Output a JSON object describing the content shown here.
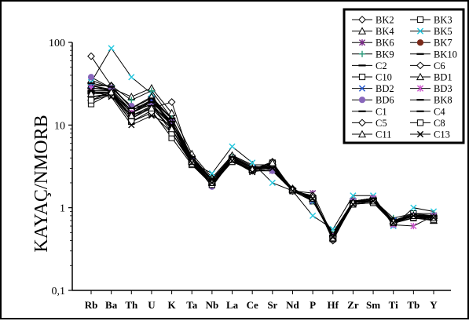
{
  "chart_data": {
    "type": "line",
    "ylabel": "KAYAÇ/NMORB",
    "yscale": "log",
    "ylim": [
      0.1,
      100
    ],
    "yticks": [
      {
        "value": 100,
        "label": "100"
      },
      {
        "value": 10,
        "label": "10"
      },
      {
        "value": 1,
        "label": "1"
      },
      {
        "value": 0.1,
        "label": "0,1"
      }
    ],
    "categories": [
      "Rb",
      "Ba",
      "Th",
      "U",
      "K",
      "Ta",
      "Nb",
      "La",
      "Ce",
      "Sr",
      "Nd",
      "P",
      "Hf",
      "Zr",
      "Sm",
      "Ti",
      "Tb",
      "Y"
    ],
    "legend_position": "top-right",
    "grid": false,
    "series": [
      {
        "name": "BK2",
        "marker": "diamond-open",
        "color": "#000000",
        "values": [
          68,
          30,
          16,
          22,
          12,
          4.2,
          2.2,
          4.2,
          3.2,
          3.0,
          1.7,
          1.3,
          0.45,
          1.2,
          1.3,
          0.65,
          0.8,
          0.75
        ]
      },
      {
        "name": "BK3",
        "marker": "square-open",
        "color": "#000000",
        "values": [
          30,
          27,
          15,
          20,
          11,
          4.0,
          2.1,
          4.0,
          3.0,
          3.1,
          1.6,
          1.2,
          0.5,
          1.2,
          1.25,
          0.7,
          0.85,
          0.8
        ]
      },
      {
        "name": "BK4",
        "marker": "triangle-open",
        "color": "#000000",
        "values": [
          35,
          28,
          22,
          28,
          14,
          4.5,
          2.3,
          4.3,
          3.3,
          3.3,
          1.7,
          1.3,
          0.45,
          1.15,
          1.2,
          0.7,
          0.8,
          0.7
        ]
      },
      {
        "name": "BK5",
        "marker": "x",
        "color": "#22c8e0",
        "values": [
          33,
          85,
          38,
          24,
          9,
          3.5,
          2.6,
          5.5,
          3.5,
          2.0,
          1.6,
          0.8,
          0.55,
          1.4,
          1.4,
          0.6,
          1.0,
          0.9
        ]
      },
      {
        "name": "BK6",
        "marker": "star",
        "color": "#7a2a8a",
        "values": [
          25,
          25,
          14,
          18,
          10,
          3.8,
          2.0,
          3.8,
          2.8,
          2.8,
          1.6,
          1.5,
          0.45,
          1.2,
          1.3,
          0.65,
          0.75,
          0.75
        ]
      },
      {
        "name": "BK7",
        "marker": "circle-filled",
        "color": "#7a2a1a",
        "values": [
          22,
          23,
          13,
          16,
          9,
          3.6,
          2.0,
          3.7,
          2.9,
          2.9,
          1.6,
          1.3,
          0.42,
          1.15,
          1.2,
          0.7,
          0.8,
          0.8
        ]
      },
      {
        "name": "BK9",
        "marker": "plus",
        "color": "#2a9a7a",
        "values": [
          30,
          30,
          20,
          26,
          12,
          4.0,
          2.2,
          4.1,
          3.1,
          3.1,
          1.7,
          1.2,
          0.48,
          1.2,
          1.25,
          0.75,
          0.85,
          0.85
        ]
      },
      {
        "name": "BK10",
        "marker": "dash",
        "color": "#000000",
        "values": [
          25,
          25,
          15,
          19,
          11,
          3.9,
          2.1,
          4.0,
          3.0,
          3.0,
          1.65,
          1.25,
          0.46,
          1.18,
          1.22,
          0.68,
          0.82,
          0.78
        ]
      },
      {
        "name": "C2",
        "marker": "dash",
        "color": "#000000",
        "values": [
          28,
          27,
          15,
          20,
          12,
          4.0,
          2.2,
          4.0,
          3.1,
          3.2,
          1.7,
          1.3,
          0.45,
          1.2,
          1.3,
          0.7,
          0.8,
          0.8
        ]
      },
      {
        "name": "C6",
        "marker": "diamond-open",
        "color": "#000000",
        "values": [
          20,
          25,
          12,
          17,
          9,
          3.4,
          1.9,
          3.7,
          2.8,
          3.2,
          1.6,
          1.4,
          0.4,
          1.15,
          1.2,
          0.7,
          0.8,
          0.75
        ]
      },
      {
        "name": "C10",
        "marker": "square-open",
        "color": "#000000",
        "values": [
          18,
          24,
          11,
          15,
          7,
          3.3,
          1.9,
          3.6,
          2.9,
          3.5,
          1.6,
          1.3,
          0.42,
          1.1,
          1.15,
          0.65,
          0.75,
          0.7
        ]
      },
      {
        "name": "BD1",
        "marker": "triangle-open",
        "color": "#000000",
        "values": [
          30,
          30,
          16,
          22,
          10,
          4.0,
          2.1,
          3.9,
          3.0,
          3.0,
          1.7,
          1.3,
          0.45,
          1.2,
          1.25,
          0.7,
          0.8,
          0.8
        ]
      },
      {
        "name": "BD2",
        "marker": "x",
        "color": "#2255cc",
        "values": [
          30,
          26,
          14,
          20,
          10,
          3.8,
          2.0,
          3.9,
          3.0,
          3.0,
          1.6,
          1.2,
          0.45,
          1.15,
          1.2,
          0.7,
          0.8,
          0.8
        ]
      },
      {
        "name": "BD3",
        "marker": "star",
        "color": "#cc55cc",
        "values": [
          28,
          26,
          14,
          18,
          8,
          3.6,
          1.9,
          3.8,
          2.9,
          2.9,
          1.6,
          1.3,
          0.45,
          1.2,
          1.3,
          0.62,
          0.6,
          0.8
        ]
      },
      {
        "name": "BD6",
        "marker": "circle-filled",
        "color": "#8866bb",
        "values": [
          38,
          28,
          17,
          17,
          11,
          3.7,
          1.8,
          3.8,
          2.8,
          2.8,
          1.6,
          1.3,
          0.44,
          1.2,
          1.25,
          0.66,
          0.8,
          0.78
        ]
      },
      {
        "name": "BK8",
        "marker": "dash",
        "color": "#000000",
        "values": [
          32,
          29,
          16,
          21,
          12,
          4.1,
          2.2,
          4.1,
          3.1,
          3.1,
          1.7,
          1.3,
          0.46,
          1.2,
          1.3,
          0.7,
          0.82,
          0.8
        ]
      },
      {
        "name": "C1",
        "marker": "dash",
        "color": "#000000",
        "values": [
          24,
          24,
          13,
          17,
          10,
          3.6,
          2.0,
          3.8,
          2.9,
          3.3,
          1.65,
          1.35,
          0.44,
          1.15,
          1.22,
          0.7,
          0.8,
          0.76
        ]
      },
      {
        "name": "C4",
        "marker": "dash",
        "color": "#000000",
        "values": [
          26,
          26,
          14,
          19,
          11,
          3.8,
          2.1,
          3.9,
          3.0,
          3.3,
          1.7,
          1.3,
          0.45,
          1.2,
          1.25,
          0.7,
          0.82,
          0.78
        ]
      },
      {
        "name": "C5",
        "marker": "diamond-open",
        "color": "#000000",
        "values": [
          22,
          24,
          12,
          16,
          19,
          3.5,
          1.9,
          3.7,
          2.9,
          3.6,
          1.6,
          1.3,
          0.42,
          1.15,
          1.2,
          0.68,
          0.78,
          0.74
        ]
      },
      {
        "name": "C8",
        "marker": "square-open",
        "color": "#000000",
        "values": [
          20,
          23,
          11,
          14,
          8,
          3.4,
          1.9,
          3.6,
          2.8,
          3.4,
          1.6,
          1.3,
          0.42,
          1.1,
          1.15,
          0.66,
          0.76,
          0.72
        ]
      },
      {
        "name": "C11",
        "marker": "triangle-open",
        "color": "#000000",
        "values": [
          24,
          25,
          13,
          16,
          9,
          3.6,
          2.0,
          3.8,
          2.9,
          3.5,
          1.65,
          1.35,
          0.43,
          1.15,
          1.2,
          0.68,
          0.8,
          0.76
        ]
      },
      {
        "name": "C13",
        "marker": "x",
        "color": "#000000",
        "values": [
          26,
          22,
          10,
          13,
          10,
          3.5,
          2.0,
          3.7,
          2.7,
          3.0,
          1.6,
          1.3,
          0.44,
          1.1,
          1.2,
          0.66,
          0.8,
          0.76
        ]
      }
    ]
  }
}
